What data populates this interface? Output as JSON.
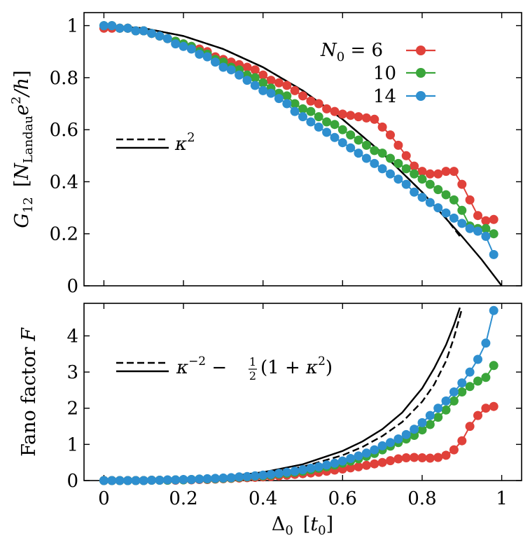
{
  "chart_data": [
    {
      "type": "line",
      "ylabel": "G12 [N_Landau e²/h]",
      "ylabel_parts": {
        "main": "G",
        "main_sub": "12",
        "bracket_open": "[",
        "N": "N",
        "N_sub": "Landau",
        "e": "e",
        "e_sup": "2",
        "slash_h": "/h",
        "bracket_close": "]"
      },
      "xlim": [
        -0.05,
        1.05
      ],
      "ylim": [
        0,
        1.05
      ],
      "yticks": [
        0,
        0.2,
        0.4,
        0.6,
        0.8,
        1
      ],
      "ytick_labels": [
        "0",
        "0.2",
        "0.4",
        "0.6",
        "0.8",
        "1"
      ],
      "legend": {
        "placement": "top-right",
        "title_parts": {
          "N": "N",
          "sub": "0",
          "eq": " = 6"
        },
        "entries": [
          "N0 = 6",
          "10",
          "14"
        ],
        "labels": [
          "",
          "10",
          "14"
        ]
      },
      "curve_legend": {
        "placement": "center-left",
        "label_base": "κ",
        "label_sup": "2"
      },
      "series": [
        {
          "name": "N0 = 6",
          "color": "#e0413a",
          "style": "dots",
          "x": [
            0.0,
            0.02,
            0.04,
            0.06,
            0.08,
            0.1,
            0.12,
            0.14,
            0.16,
            0.18,
            0.2,
            0.22,
            0.24,
            0.26,
            0.28,
            0.3,
            0.32,
            0.34,
            0.36,
            0.38,
            0.4,
            0.42,
            0.44,
            0.46,
            0.48,
            0.5,
            0.52,
            0.54,
            0.56,
            0.58,
            0.6,
            0.62,
            0.64,
            0.66,
            0.68,
            0.7,
            0.72,
            0.74,
            0.76,
            0.78,
            0.8,
            0.82,
            0.84,
            0.86,
            0.88,
            0.9,
            0.92,
            0.94,
            0.96,
            0.98
          ],
          "y": [
            0.99,
            0.99,
            0.99,
            0.99,
            0.98,
            0.98,
            0.97,
            0.96,
            0.95,
            0.94,
            0.93,
            0.92,
            0.91,
            0.9,
            0.88,
            0.87,
            0.86,
            0.85,
            0.84,
            0.83,
            0.81,
            0.79,
            0.78,
            0.77,
            0.75,
            0.73,
            0.71,
            0.7,
            0.68,
            0.67,
            0.66,
            0.655,
            0.65,
            0.645,
            0.64,
            0.61,
            0.58,
            0.54,
            0.5,
            0.46,
            0.44,
            0.43,
            0.43,
            0.44,
            0.44,
            0.39,
            0.33,
            0.27,
            0.25,
            0.255
          ]
        },
        {
          "name": "10",
          "color": "#3aa53a",
          "style": "dots",
          "x": [
            0.0,
            0.02,
            0.04,
            0.06,
            0.08,
            0.1,
            0.12,
            0.14,
            0.16,
            0.18,
            0.2,
            0.22,
            0.24,
            0.26,
            0.28,
            0.3,
            0.32,
            0.34,
            0.36,
            0.38,
            0.4,
            0.42,
            0.44,
            0.46,
            0.48,
            0.5,
            0.52,
            0.54,
            0.56,
            0.58,
            0.6,
            0.62,
            0.64,
            0.66,
            0.68,
            0.7,
            0.72,
            0.74,
            0.76,
            0.78,
            0.8,
            0.82,
            0.84,
            0.86,
            0.88,
            0.9,
            0.92,
            0.94,
            0.96,
            0.98
          ],
          "y": [
            1.0,
            1.0,
            0.99,
            0.99,
            0.98,
            0.98,
            0.97,
            0.96,
            0.95,
            0.94,
            0.93,
            0.92,
            0.9,
            0.89,
            0.87,
            0.86,
            0.84,
            0.83,
            0.81,
            0.8,
            0.78,
            0.76,
            0.74,
            0.73,
            0.7,
            0.68,
            0.67,
            0.65,
            0.63,
            0.62,
            0.6,
            0.58,
            0.56,
            0.54,
            0.52,
            0.51,
            0.49,
            0.47,
            0.45,
            0.43,
            0.41,
            0.39,
            0.37,
            0.35,
            0.33,
            0.29,
            0.23,
            0.22,
            0.22,
            0.2
          ]
        },
        {
          "name": "14",
          "color": "#2e8fcf",
          "style": "dots",
          "x": [
            0.0,
            0.02,
            0.04,
            0.06,
            0.08,
            0.1,
            0.12,
            0.14,
            0.16,
            0.18,
            0.2,
            0.22,
            0.24,
            0.26,
            0.28,
            0.3,
            0.32,
            0.34,
            0.36,
            0.38,
            0.4,
            0.42,
            0.44,
            0.46,
            0.48,
            0.5,
            0.52,
            0.54,
            0.56,
            0.58,
            0.6,
            0.62,
            0.64,
            0.66,
            0.68,
            0.7,
            0.72,
            0.74,
            0.76,
            0.78,
            0.8,
            0.82,
            0.84,
            0.86,
            0.88,
            0.9,
            0.92,
            0.94,
            0.96,
            0.98
          ],
          "y": [
            1.0,
            1.0,
            0.99,
            0.99,
            0.98,
            0.98,
            0.97,
            0.96,
            0.95,
            0.93,
            0.92,
            0.91,
            0.89,
            0.88,
            0.86,
            0.84,
            0.83,
            0.81,
            0.79,
            0.77,
            0.75,
            0.74,
            0.72,
            0.7,
            0.67,
            0.65,
            0.63,
            0.61,
            0.59,
            0.57,
            0.55,
            0.53,
            0.51,
            0.49,
            0.47,
            0.45,
            0.43,
            0.41,
            0.39,
            0.36,
            0.34,
            0.32,
            0.3,
            0.28,
            0.26,
            0.24,
            0.22,
            0.21,
            0.19,
            0.12
          ]
        },
        {
          "name": "",
          "color": "#000000",
          "style": "dashed",
          "x": [
            0.0,
            0.1,
            0.2,
            0.3,
            0.4,
            0.5,
            0.6,
            0.7,
            0.8,
            0.85,
            0.9
          ],
          "y": [
            1.0,
            0.99,
            0.96,
            0.91,
            0.84,
            0.75,
            0.64,
            0.51,
            0.36,
            0.28,
            0.18
          ]
        },
        {
          "name": "",
          "color": "#000000",
          "style": "solid",
          "x": [
            0.0,
            0.1,
            0.2,
            0.3,
            0.4,
            0.5,
            0.6,
            0.7,
            0.8,
            0.9,
            0.95,
            1.0
          ],
          "y": [
            1.0,
            0.99,
            0.96,
            0.91,
            0.84,
            0.75,
            0.64,
            0.51,
            0.36,
            0.19,
            0.1,
            0.0
          ]
        }
      ]
    },
    {
      "type": "line",
      "xlabel": "Δ0 [t0]",
      "xlabel_parts": {
        "delta": "Δ",
        "delta_sub": "0",
        "bracket_open": "[",
        "t": "t",
        "t_sub": "0",
        "bracket_close": "]"
      },
      "ylabel": "Fano factor F",
      "ylabel_parts": {
        "text": "Fano factor ",
        "F": "F"
      },
      "xlim": [
        -0.05,
        1.05
      ],
      "ylim": [
        0,
        4.9
      ],
      "xticks": [
        0,
        0.2,
        0.4,
        0.6,
        0.8,
        1
      ],
      "xtick_labels": [
        "0",
        "0.2",
        "0.4",
        "0.6",
        "0.8",
        "1"
      ],
      "yticks": [
        0,
        1,
        2,
        3,
        4
      ],
      "ytick_labels": [
        "0",
        "1",
        "2",
        "3",
        "4"
      ],
      "curve_legend": {
        "placement": "top-left",
        "kappa": "κ",
        "minus_two": "−2",
        "minus": " − ",
        "half_num": "1",
        "half_den": "2",
        "paren_open": "(1 + ",
        "kappa2": "κ",
        "two": "2",
        "paren_close": ")"
      },
      "series": [
        {
          "name": "N0 = 6",
          "color": "#e0413a",
          "style": "dots",
          "x": [
            0.0,
            0.02,
            0.04,
            0.06,
            0.08,
            0.1,
            0.12,
            0.14,
            0.16,
            0.18,
            0.2,
            0.22,
            0.24,
            0.26,
            0.28,
            0.3,
            0.32,
            0.34,
            0.36,
            0.38,
            0.4,
            0.42,
            0.44,
            0.46,
            0.48,
            0.5,
            0.52,
            0.54,
            0.56,
            0.58,
            0.6,
            0.62,
            0.64,
            0.66,
            0.68,
            0.7,
            0.72,
            0.74,
            0.76,
            0.78,
            0.8,
            0.82,
            0.84,
            0.86,
            0.88,
            0.9,
            0.92,
            0.94,
            0.96,
            0.98
          ],
          "y": [
            0.0,
            0.0,
            0.0,
            0.0,
            0.0,
            0.0,
            0.01,
            0.01,
            0.01,
            0.01,
            0.02,
            0.02,
            0.03,
            0.03,
            0.04,
            0.05,
            0.06,
            0.07,
            0.08,
            0.09,
            0.1,
            0.11,
            0.13,
            0.15,
            0.17,
            0.19,
            0.21,
            0.23,
            0.26,
            0.29,
            0.32,
            0.35,
            0.38,
            0.42,
            0.46,
            0.5,
            0.55,
            0.6,
            0.63,
            0.64,
            0.63,
            0.62,
            0.64,
            0.7,
            0.85,
            1.1,
            1.5,
            1.8,
            2.0,
            2.05
          ]
        },
        {
          "name": "10",
          "color": "#3aa53a",
          "style": "dots",
          "x": [
            0.0,
            0.02,
            0.04,
            0.06,
            0.08,
            0.1,
            0.12,
            0.14,
            0.16,
            0.18,
            0.2,
            0.22,
            0.24,
            0.26,
            0.28,
            0.3,
            0.32,
            0.34,
            0.36,
            0.38,
            0.4,
            0.42,
            0.44,
            0.46,
            0.48,
            0.5,
            0.52,
            0.54,
            0.56,
            0.58,
            0.6,
            0.62,
            0.64,
            0.66,
            0.68,
            0.7,
            0.72,
            0.74,
            0.76,
            0.78,
            0.8,
            0.82,
            0.84,
            0.86,
            0.88,
            0.9,
            0.92,
            0.94,
            0.96,
            0.98
          ],
          "y": [
            0.0,
            0.0,
            0.0,
            0.0,
            0.0,
            0.0,
            0.01,
            0.01,
            0.01,
            0.02,
            0.02,
            0.03,
            0.04,
            0.04,
            0.05,
            0.06,
            0.07,
            0.09,
            0.1,
            0.12,
            0.13,
            0.15,
            0.18,
            0.2,
            0.23,
            0.26,
            0.3,
            0.34,
            0.38,
            0.43,
            0.48,
            0.54,
            0.6,
            0.67,
            0.75,
            0.85,
            0.95,
            1.05,
            1.15,
            1.25,
            1.4,
            1.55,
            1.75,
            1.95,
            2.2,
            2.45,
            2.6,
            2.75,
            2.85,
            3.18
          ]
        },
        {
          "name": "14",
          "color": "#2e8fcf",
          "style": "dots",
          "x": [
            0.0,
            0.02,
            0.04,
            0.06,
            0.08,
            0.1,
            0.12,
            0.14,
            0.16,
            0.18,
            0.2,
            0.22,
            0.24,
            0.26,
            0.28,
            0.3,
            0.32,
            0.34,
            0.36,
            0.38,
            0.4,
            0.42,
            0.44,
            0.46,
            0.48,
            0.5,
            0.52,
            0.54,
            0.56,
            0.58,
            0.6,
            0.62,
            0.64,
            0.66,
            0.68,
            0.7,
            0.72,
            0.74,
            0.76,
            0.78,
            0.8,
            0.82,
            0.84,
            0.86,
            0.88,
            0.9,
            0.92,
            0.94,
            0.96,
            0.98
          ],
          "y": [
            0.0,
            0.0,
            0.0,
            0.0,
            0.0,
            0.0,
            0.01,
            0.01,
            0.02,
            0.02,
            0.03,
            0.03,
            0.04,
            0.05,
            0.06,
            0.07,
            0.08,
            0.1,
            0.11,
            0.13,
            0.15,
            0.17,
            0.2,
            0.23,
            0.26,
            0.3,
            0.34,
            0.38,
            0.43,
            0.48,
            0.54,
            0.61,
            0.68,
            0.76,
            0.85,
            0.96,
            1.05,
            1.15,
            1.27,
            1.42,
            1.6,
            1.8,
            2.0,
            2.2,
            2.45,
            2.7,
            3.0,
            3.35,
            3.8,
            4.7
          ]
        },
        {
          "name": "",
          "color": "#000000",
          "style": "dashed",
          "x": [
            0.0,
            0.1,
            0.2,
            0.3,
            0.4,
            0.5,
            0.6,
            0.65,
            0.7,
            0.75,
            0.8,
            0.83,
            0.86,
            0.88,
            0.9
          ],
          "y": [
            0.0,
            0.0,
            0.02,
            0.08,
            0.19,
            0.38,
            0.7,
            0.93,
            1.23,
            1.62,
            2.18,
            2.65,
            3.3,
            3.95,
            4.75
          ]
        },
        {
          "name": "",
          "color": "#000000",
          "style": "solid",
          "x": [
            0.0,
            0.1,
            0.2,
            0.3,
            0.4,
            0.5,
            0.6,
            0.65,
            0.7,
            0.75,
            0.8,
            0.83,
            0.86,
            0.88,
            0.895
          ],
          "y": [
            0.0,
            0.0,
            0.03,
            0.1,
            0.23,
            0.45,
            0.82,
            1.08,
            1.42,
            1.88,
            2.55,
            3.1,
            3.75,
            4.3,
            4.78
          ]
        }
      ]
    }
  ]
}
